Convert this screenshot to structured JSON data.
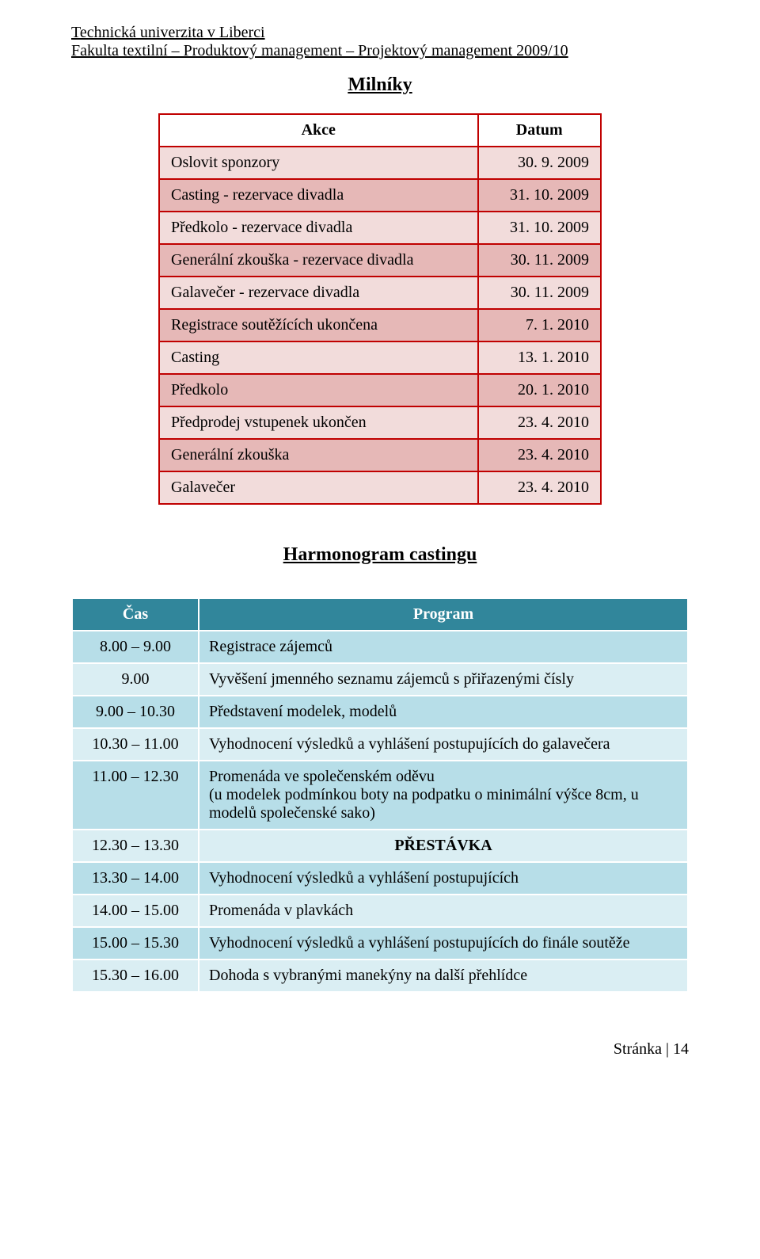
{
  "header": {
    "line1": "Technická univerzita v Liberci",
    "line2": "Fakulta textilní – Produktový management – Projektový management 2009/10"
  },
  "milniky": {
    "title": "Milníky",
    "col_action": "Akce",
    "col_date": "Datum",
    "border_color": "#c00000",
    "colors": {
      "odd": "#f2dcdb",
      "even": "#e6b8b7"
    },
    "rows": [
      {
        "action": "Oslovit sponzory",
        "date": "30. 9. 2009"
      },
      {
        "action": "Casting - rezervace divadla",
        "date": "31. 10. 2009"
      },
      {
        "action": "Předkolo - rezervace divadla",
        "date": "31. 10. 2009"
      },
      {
        "action": "Generální zkouška - rezervace divadla",
        "date": "30. 11. 2009"
      },
      {
        "action": "Galavečer - rezervace divadla",
        "date": "30. 11. 2009"
      },
      {
        "action": "Registrace soutěžících ukončena",
        "date": "7. 1. 2010"
      },
      {
        "action": "Casting",
        "date": "13. 1. 2010"
      },
      {
        "action": "Předkolo",
        "date": "20. 1. 2010"
      },
      {
        "action": "Předprodej vstupenek ukončen",
        "date": "23. 4. 2010"
      },
      {
        "action": "Generální zkouška",
        "date": "23. 4. 2010"
      },
      {
        "action": "Galavečer",
        "date": "23. 4. 2010"
      }
    ]
  },
  "casting": {
    "title": "Harmonogram castingu",
    "col_time": "Čas",
    "col_program": "Program",
    "header_bg": "#31869b",
    "header_fg": "#ffffff",
    "colors": {
      "odd": "#b7dee8",
      "even": "#daeef3"
    },
    "rows": [
      {
        "time": "8.00 – 9.00",
        "program": "Registrace zájemců"
      },
      {
        "time": "9.00",
        "program": "Vyvěšení jmenného seznamu zájemců s přiřazenými čísly"
      },
      {
        "time": "9.00 – 10.30",
        "program": "Představení modelek, modelů"
      },
      {
        "time": "10.30 – 11.00",
        "program": "Vyhodnocení výsledků a vyhlášení postupujících do galavečera"
      },
      {
        "time": "11.00 – 12.30",
        "program": "Promenáda ve společenském oděvu\n(u modelek podmínkou boty na podpatku o minimální výšce 8cm, u modelů společenské sako)"
      },
      {
        "time": "12.30 – 13.30",
        "program": "PŘESTÁVKA",
        "break": true
      },
      {
        "time": "13.30 – 14.00",
        "program": "Vyhodnocení výsledků a vyhlášení postupujících"
      },
      {
        "time": "14.00 – 15.00",
        "program": "Promenáda v plavkách"
      },
      {
        "time": "15.00 – 15.30",
        "program": "Vyhodnocení výsledků a vyhlášení postupujících do finále soutěže"
      },
      {
        "time": "15.30 – 16.00",
        "program": "Dohoda s vybranými manekýny na další přehlídce"
      }
    ]
  },
  "footer": "Stránka | 14"
}
